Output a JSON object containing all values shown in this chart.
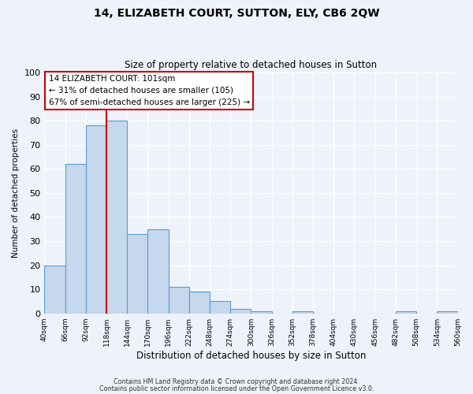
{
  "title": "14, ELIZABETH COURT, SUTTON, ELY, CB6 2QW",
  "subtitle": "Size of property relative to detached houses in Sutton",
  "xlabel": "Distribution of detached houses by size in Sutton",
  "ylabel": "Number of detached properties",
  "bar_heights": [
    20,
    62,
    78,
    80,
    33,
    35,
    11,
    9,
    5,
    2,
    1,
    0,
    1,
    0,
    0,
    0,
    0,
    1,
    0,
    1
  ],
  "bin_labels": [
    "40sqm",
    "66sqm",
    "92sqm",
    "118sqm",
    "144sqm",
    "170sqm",
    "196sqm",
    "222sqm",
    "248sqm",
    "274sqm",
    "300sqm",
    "326sqm",
    "352sqm",
    "378sqm",
    "404sqm",
    "430sqm",
    "456sqm",
    "482sqm",
    "508sqm",
    "534sqm",
    "560sqm"
  ],
  "ylim": [
    0,
    100
  ],
  "yticks": [
    0,
    10,
    20,
    30,
    40,
    50,
    60,
    70,
    80,
    90,
    100
  ],
  "bar_color": "#c5d8ed",
  "bar_edge_color": "#5b9bd5",
  "bg_color": "#eef2fa",
  "grid_color": "#ffffff",
  "vline_x": 2.5,
  "vline_color": "#cc0000",
  "annotation_text": "14 ELIZABETH COURT: 101sqm\n← 31% of detached houses are smaller (105)\n67% of semi-detached houses are larger (225) →",
  "annotation_box_color": "#ffffff",
  "annotation_box_edge": "#cc0000",
  "footer1": "Contains HM Land Registry data © Crown copyright and database right 2024.",
  "footer2": "Contains public sector information licensed under the Open Government Licence v3.0."
}
